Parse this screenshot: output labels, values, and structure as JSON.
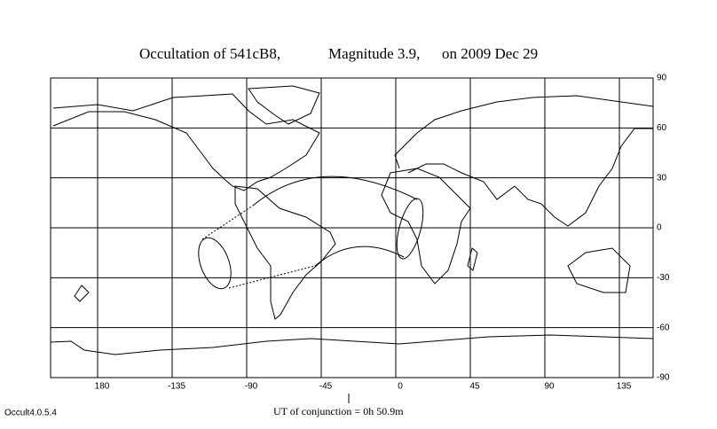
{
  "map": {
    "title": [
      "Occultation of 541cB8,",
      "Magnitude 3.9,",
      "on 2009 Dec 29"
    ],
    "lon_ticks": [
      {
        "value": -180,
        "label": "180"
      },
      -135,
      -90,
      -45,
      0,
      45,
      90,
      135
    ],
    "lat_ticks": [
      90,
      60,
      30,
      0,
      -30,
      -60,
      -90
    ],
    "ut_label": "UT of conjunction = 0h 50.9m",
    "version": "Occult4.0.5.4"
  }
}
